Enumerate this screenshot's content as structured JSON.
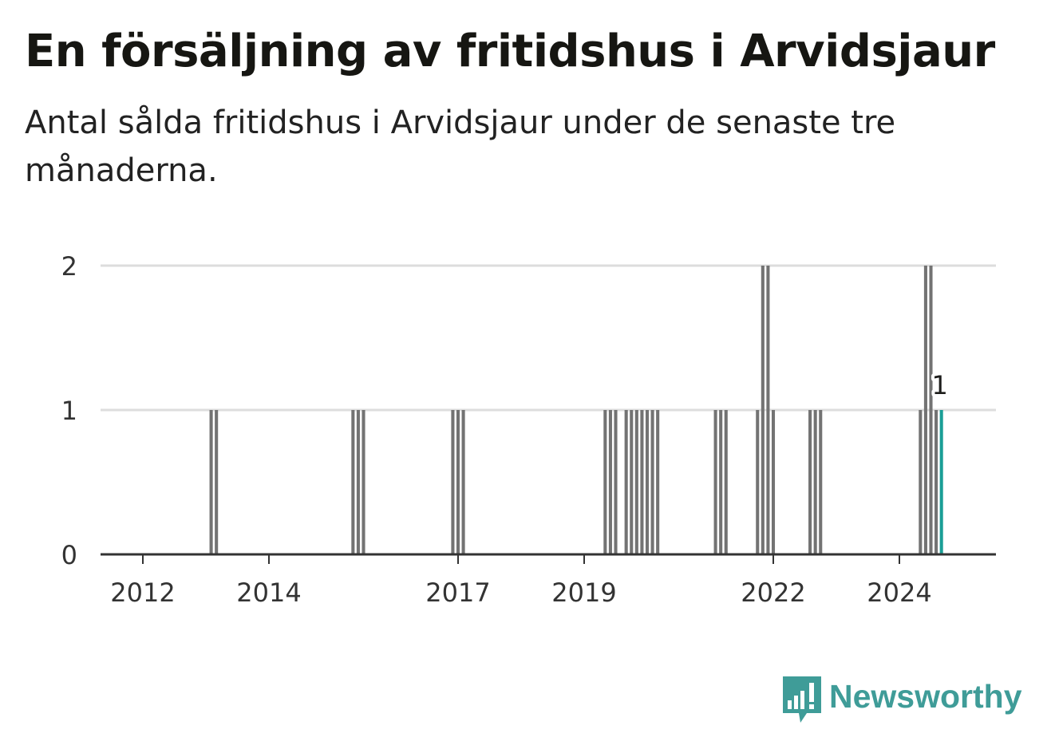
{
  "title": "En försäljning av fritidshus i Arvidsjaur",
  "subtitle": "Antal sålda fritidshus i Arvidsjaur under de senaste tre månaderna.",
  "logo": {
    "text": "Newsworthy",
    "icon": "newsworthy-chart-bubble-icon",
    "color": "#3f9c98"
  },
  "colors": {
    "bar": "#737373",
    "highlight": "#1a9e96",
    "grid": "#dddddd",
    "axis": "#333333"
  },
  "chart_data": {
    "type": "bar",
    "title": "",
    "xlabel": "",
    "ylabel": "",
    "ylim": [
      0,
      2
    ],
    "yticks": [
      0,
      1,
      2
    ],
    "xlim": [
      "2011-08",
      "2025-01"
    ],
    "xticks": [
      "2012",
      "2014",
      "2017",
      "2019",
      "2022",
      "2024"
    ],
    "grid": "horizontal",
    "series": [
      {
        "values": [
          {
            "x": "2013-02",
            "y": 1
          },
          {
            "x": "2013-03",
            "y": 1
          },
          {
            "x": "2015-05",
            "y": 1
          },
          {
            "x": "2015-06",
            "y": 1
          },
          {
            "x": "2015-07",
            "y": 1
          },
          {
            "x": "2016-12",
            "y": 1
          },
          {
            "x": "2017-01",
            "y": 1
          },
          {
            "x": "2017-02",
            "y": 1
          },
          {
            "x": "2019-05",
            "y": 1
          },
          {
            "x": "2019-06",
            "y": 1
          },
          {
            "x": "2019-07",
            "y": 1
          },
          {
            "x": "2019-09",
            "y": 1
          },
          {
            "x": "2019-10",
            "y": 1
          },
          {
            "x": "2019-11",
            "y": 1
          },
          {
            "x": "2019-12",
            "y": 1
          },
          {
            "x": "2020-01",
            "y": 1
          },
          {
            "x": "2020-02",
            "y": 1
          },
          {
            "x": "2020-03",
            "y": 1
          },
          {
            "x": "2021-02",
            "y": 1
          },
          {
            "x": "2021-03",
            "y": 1
          },
          {
            "x": "2021-04",
            "y": 1
          },
          {
            "x": "2021-10",
            "y": 1
          },
          {
            "x": "2021-11",
            "y": 2
          },
          {
            "x": "2021-12",
            "y": 2
          },
          {
            "x": "2022-01",
            "y": 1
          },
          {
            "x": "2022-08",
            "y": 1
          },
          {
            "x": "2022-09",
            "y": 1
          },
          {
            "x": "2022-10",
            "y": 1
          },
          {
            "x": "2024-05",
            "y": 1
          },
          {
            "x": "2024-06",
            "y": 2
          },
          {
            "x": "2024-07",
            "y": 2
          },
          {
            "x": "2024-08",
            "y": 1
          },
          {
            "x": "2024-09",
            "y": 1,
            "highlight": true
          }
        ]
      }
    ],
    "annotations": [
      {
        "x": "2024-09",
        "text": "1"
      }
    ]
  }
}
